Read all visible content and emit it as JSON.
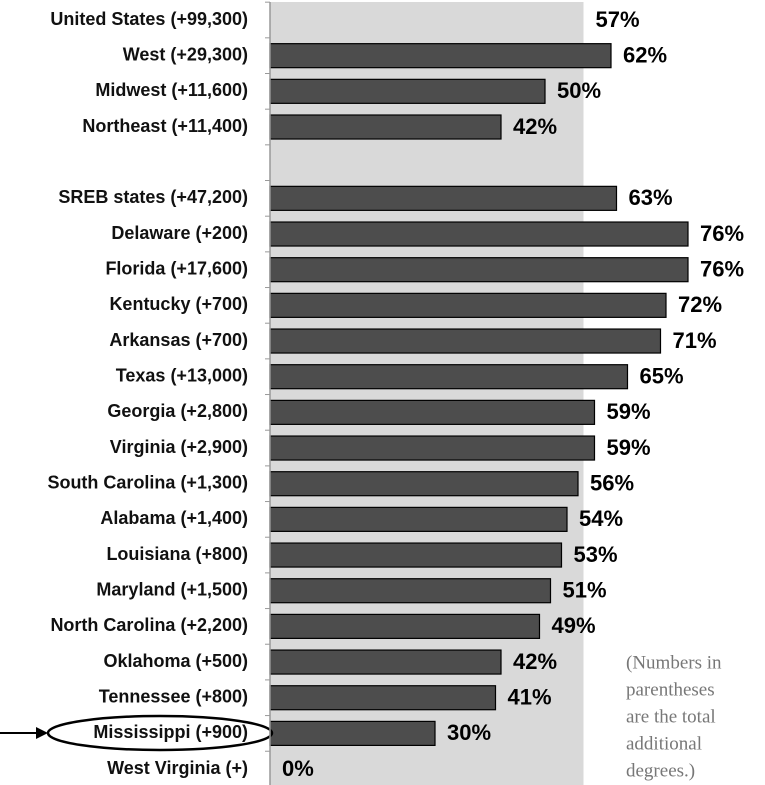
{
  "chart_data": {
    "type": "hbar",
    "categories": [
      "United States (+99,300)",
      "West (+29,300)",
      "Midwest (+11,600)",
      "Northeast (+11,400)",
      null,
      "SREB states (+47,200)",
      "Delaware (+200)",
      "Florida (+17,600)",
      "Kentucky (+700)",
      "Arkansas (+700)",
      "Texas (+13,000)",
      "Georgia (+2,800)",
      "Virginia (+2,900)",
      "South Carolina (+1,300)",
      "Alabama (+1,400)",
      "Louisiana (+800)",
      "Maryland (+1,500)",
      "North Carolina (+2,200)",
      "Oklahoma (+500)",
      "Tennessee (+800)",
      "Mississippi (+900)",
      "West Virginia (+)"
    ],
    "values": [
      57,
      62,
      50,
      42,
      null,
      63,
      76,
      76,
      72,
      71,
      65,
      59,
      59,
      56,
      54,
      53,
      51,
      49,
      42,
      41,
      30,
      0
    ],
    "value_labels": [
      "57%",
      "62%",
      "50%",
      "42%",
      null,
      "63%",
      "76%",
      "76%",
      "72%",
      "71%",
      "65%",
      "59%",
      "59%",
      "56%",
      "54%",
      "53%",
      "51%",
      "49%",
      "42%",
      "41%",
      "30%",
      "0%"
    ],
    "color": "#4d4d4d",
    "band_index": 0,
    "band_color": "#d9d9d9",
    "xlim": [
      0,
      90
    ],
    "annotation": [
      "(Numbers in",
      "parentheses",
      "are the total",
      "additional",
      "degrees.)"
    ]
  }
}
